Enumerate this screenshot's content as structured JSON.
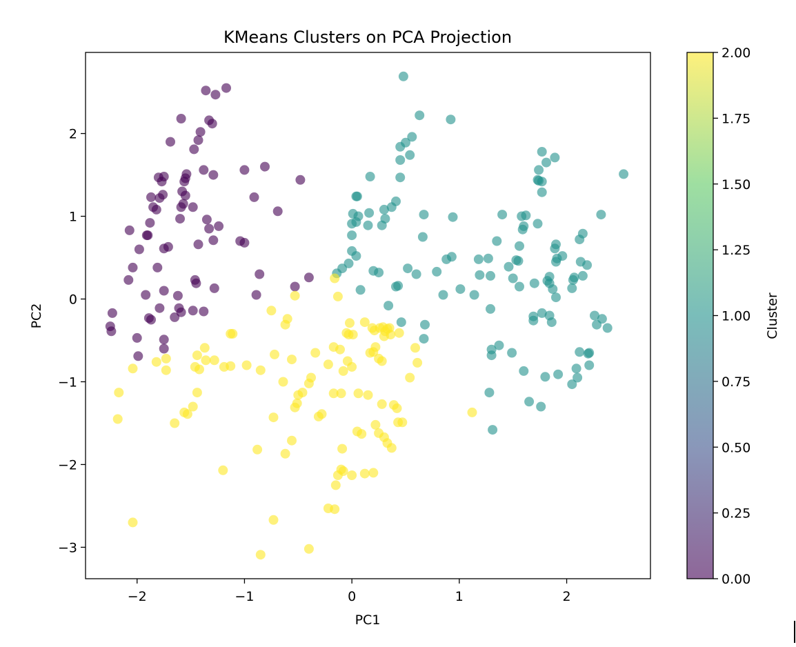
{
  "chart_data": {
    "type": "scatter",
    "title": "KMeans Clusters on PCA Projection",
    "xlabel": "PC1",
    "ylabel": "PC2",
    "xlim": [
      -2.48,
      2.78
    ],
    "ylim": [
      -3.38,
      2.98
    ],
    "xticks": [
      -2,
      -1,
      0,
      1,
      2
    ],
    "xtick_labels": [
      "−2",
      "−1",
      "0",
      "1",
      "2"
    ],
    "yticks": [
      -3,
      -2,
      -1,
      0,
      1,
      2
    ],
    "ytick_labels": [
      "−3",
      "−2",
      "−1",
      "0",
      "1",
      "2"
    ],
    "grid": false,
    "point_alpha": 0.6,
    "colorbar": {
      "label": "Cluster",
      "min": 0,
      "max": 2,
      "ticks": [
        0,
        0.25,
        0.5,
        0.75,
        1.0,
        1.25,
        1.5,
        1.75,
        2.0
      ],
      "tick_labels": [
        "0.00",
        "0.25",
        "0.50",
        "0.75",
        "1.00",
        "1.25",
        "1.50",
        "1.75",
        "2.00"
      ],
      "colormap": "viridis",
      "stops": [
        "#440154",
        "#3b528b",
        "#21918c",
        "#5ec962",
        "#fde725"
      ]
    },
    "series": [
      {
        "cluster": 0,
        "color": "#440154",
        "points": [
          [
            -1.36,
            2.52
          ],
          [
            -1.17,
            2.55
          ],
          [
            -1.27,
            2.47
          ],
          [
            -1.59,
            2.18
          ],
          [
            -1.33,
            2.16
          ],
          [
            -1.3,
            2.12
          ],
          [
            -1.41,
            2.02
          ],
          [
            -1.43,
            1.92
          ],
          [
            -1.69,
            1.9
          ],
          [
            -1.47,
            1.81
          ],
          [
            -1.0,
            1.56
          ],
          [
            -0.81,
            1.6
          ],
          [
            -1.38,
            1.56
          ],
          [
            -1.29,
            1.5
          ],
          [
            -1.54,
            1.51
          ],
          [
            -1.55,
            1.46
          ],
          [
            -1.56,
            1.42
          ],
          [
            -1.8,
            1.47
          ],
          [
            -1.75,
            1.48
          ],
          [
            -1.77,
            1.42
          ],
          [
            -0.48,
            1.44
          ],
          [
            -1.58,
            1.3
          ],
          [
            -1.55,
            1.25
          ],
          [
            -1.76,
            1.26
          ],
          [
            -0.91,
            1.23
          ],
          [
            -1.87,
            1.23
          ],
          [
            -1.79,
            1.22
          ],
          [
            -1.57,
            1.15
          ],
          [
            -1.59,
            1.11
          ],
          [
            -1.85,
            1.11
          ],
          [
            -1.82,
            1.08
          ],
          [
            -1.48,
            1.11
          ],
          [
            -0.69,
            1.06
          ],
          [
            -1.6,
            0.97
          ],
          [
            -1.35,
            0.96
          ],
          [
            -1.24,
            0.88
          ],
          [
            -1.88,
            0.92
          ],
          [
            -1.33,
            0.85
          ],
          [
            -2.07,
            0.83
          ],
          [
            -1.9,
            0.77
          ],
          [
            -1.91,
            0.77
          ],
          [
            -1.29,
            0.71
          ],
          [
            -1.04,
            0.7
          ],
          [
            -1.0,
            0.68
          ],
          [
            -1.43,
            0.66
          ],
          [
            -1.71,
            0.63
          ],
          [
            -1.75,
            0.61
          ],
          [
            -1.98,
            0.6
          ],
          [
            -2.04,
            0.38
          ],
          [
            -1.81,
            0.38
          ],
          [
            -0.86,
            0.3
          ],
          [
            -0.4,
            0.26
          ],
          [
            -2.08,
            0.23
          ],
          [
            -1.46,
            0.23
          ],
          [
            -1.45,
            0.19
          ],
          [
            -0.53,
            0.15
          ],
          [
            -1.28,
            0.13
          ],
          [
            -1.75,
            0.1
          ],
          [
            -1.92,
            0.05
          ],
          [
            -1.62,
            0.04
          ],
          [
            -0.89,
            0.05
          ],
          [
            -1.61,
            -0.11
          ],
          [
            -1.59,
            -0.16
          ],
          [
            -1.79,
            -0.11
          ],
          [
            -1.48,
            -0.14
          ],
          [
            -1.38,
            -0.15
          ],
          [
            -2.23,
            -0.17
          ],
          [
            -1.65,
            -0.22
          ],
          [
            -1.89,
            -0.23
          ],
          [
            -1.87,
            -0.25
          ],
          [
            -2.25,
            -0.33
          ],
          [
            -2.24,
            -0.39
          ],
          [
            -2.0,
            -0.47
          ],
          [
            -1.75,
            -0.49
          ],
          [
            -1.75,
            -0.6
          ],
          [
            -1.99,
            -0.69
          ]
        ]
      },
      {
        "cluster": 1,
        "color": "#21918c",
        "points": [
          [
            0.48,
            2.69
          ],
          [
            0.63,
            2.22
          ],
          [
            0.92,
            2.17
          ],
          [
            0.56,
            1.96
          ],
          [
            0.5,
            1.89
          ],
          [
            0.45,
            1.84
          ],
          [
            0.54,
            1.74
          ],
          [
            0.45,
            1.68
          ],
          [
            1.77,
            1.78
          ],
          [
            1.89,
            1.71
          ],
          [
            1.81,
            1.65
          ],
          [
            1.74,
            1.56
          ],
          [
            2.53,
            1.51
          ],
          [
            0.17,
            1.48
          ],
          [
            0.45,
            1.47
          ],
          [
            1.73,
            1.44
          ],
          [
            1.74,
            1.43
          ],
          [
            1.77,
            1.42
          ],
          [
            1.77,
            1.29
          ],
          [
            0.04,
            1.24
          ],
          [
            0.05,
            1.24
          ],
          [
            0.41,
            1.18
          ],
          [
            0.37,
            1.11
          ],
          [
            0.3,
            1.08
          ],
          [
            0.16,
            1.04
          ],
          [
            0.01,
            1.03
          ],
          [
            0.06,
            1.0
          ],
          [
            0.67,
            1.02
          ],
          [
            1.4,
            1.02
          ],
          [
            1.58,
            1.0
          ],
          [
            1.62,
            1.01
          ],
          [
            2.32,
            1.02
          ],
          [
            0.94,
            0.99
          ],
          [
            0.31,
            0.97
          ],
          [
            0.04,
            0.93
          ],
          [
            0.0,
            0.91
          ],
          [
            1.73,
            0.91
          ],
          [
            0.15,
            0.89
          ],
          [
            0.28,
            0.89
          ],
          [
            1.6,
            0.88
          ],
          [
            1.59,
            0.84
          ],
          [
            2.15,
            0.79
          ],
          [
            0.0,
            0.77
          ],
          [
            0.66,
            0.75
          ],
          [
            2.12,
            0.72
          ],
          [
            1.35,
            0.7
          ],
          [
            1.9,
            0.66
          ],
          [
            1.89,
            0.61
          ],
          [
            1.56,
            0.64
          ],
          [
            0.0,
            0.58
          ],
          [
            0.04,
            0.52
          ],
          [
            1.96,
            0.52
          ],
          [
            0.93,
            0.51
          ],
          [
            0.88,
            0.48
          ],
          [
            1.91,
            0.49
          ],
          [
            1.27,
            0.49
          ],
          [
            1.18,
            0.48
          ],
          [
            1.53,
            0.47
          ],
          [
            1.55,
            0.46
          ],
          [
            1.9,
            0.45
          ],
          [
            2.13,
            0.45
          ],
          [
            2.19,
            0.41
          ],
          [
            1.46,
            0.39
          ],
          [
            -0.03,
            0.43
          ],
          [
            -0.09,
            0.37
          ],
          [
            0.52,
            0.37
          ],
          [
            -0.14,
            0.31
          ],
          [
            0.2,
            0.34
          ],
          [
            0.25,
            0.32
          ],
          [
            0.79,
            0.33
          ],
          [
            0.6,
            0.3
          ],
          [
            1.19,
            0.29
          ],
          [
            1.29,
            0.28
          ],
          [
            1.84,
            0.27
          ],
          [
            2.15,
            0.28
          ],
          [
            1.5,
            0.25
          ],
          [
            1.82,
            0.22
          ],
          [
            1.84,
            0.19
          ],
          [
            1.7,
            0.19
          ],
          [
            2.06,
            0.23
          ],
          [
            2.07,
            0.26
          ],
          [
            0.41,
            0.15
          ],
          [
            0.43,
            0.16
          ],
          [
            1.01,
            0.12
          ],
          [
            0.08,
            0.11
          ],
          [
            1.56,
            0.15
          ],
          [
            2.05,
            0.13
          ],
          [
            1.87,
            0.12
          ],
          [
            0.85,
            0.05
          ],
          [
            1.14,
            0.05
          ],
          [
            1.9,
            0.02
          ],
          [
            0.34,
            -0.08
          ],
          [
            1.29,
            -0.12
          ],
          [
            1.84,
            -0.2
          ],
          [
            1.69,
            -0.21
          ],
          [
            1.77,
            -0.17
          ],
          [
            1.69,
            -0.26
          ],
          [
            1.86,
            -0.28
          ],
          [
            2.26,
            -0.2
          ],
          [
            2.33,
            -0.24
          ],
          [
            2.28,
            -0.31
          ],
          [
            2.38,
            -0.35
          ],
          [
            0.68,
            -0.31
          ],
          [
            0.46,
            -0.28
          ],
          [
            0.67,
            -0.48
          ],
          [
            1.37,
            -0.56
          ],
          [
            1.3,
            -0.61
          ],
          [
            1.3,
            -0.68
          ],
          [
            1.49,
            -0.65
          ],
          [
            2.12,
            -0.64
          ],
          [
            2.2,
            -0.66
          ],
          [
            2.21,
            -0.65
          ],
          [
            2.21,
            -0.8
          ],
          [
            2.09,
            -0.84
          ],
          [
            1.6,
            -0.87
          ],
          [
            1.8,
            -0.94
          ],
          [
            1.92,
            -0.91
          ],
          [
            2.1,
            -0.95
          ],
          [
            2.05,
            -1.03
          ],
          [
            1.28,
            -1.13
          ],
          [
            1.65,
            -1.24
          ],
          [
            1.76,
            -1.3
          ],
          [
            1.31,
            -1.58
          ]
        ]
      },
      {
        "cluster": 2,
        "color": "#fde725",
        "points": [
          [
            -0.16,
            0.25
          ],
          [
            -0.13,
            0.03
          ],
          [
            -0.53,
            0.04
          ],
          [
            -0.75,
            -0.14
          ],
          [
            -0.6,
            -0.24
          ],
          [
            -0.62,
            -0.31
          ],
          [
            -1.13,
            -0.42
          ],
          [
            -1.11,
            -0.42
          ],
          [
            -0.02,
            -0.29
          ],
          [
            0.12,
            -0.28
          ],
          [
            0.29,
            -0.34
          ],
          [
            0.26,
            -0.35
          ],
          [
            0.33,
            -0.36
          ],
          [
            0.35,
            -0.35
          ],
          [
            0.31,
            -0.39
          ],
          [
            0.19,
            -0.35
          ],
          [
            0.21,
            -0.38
          ],
          [
            0.44,
            -0.41
          ],
          [
            0.36,
            -0.43
          ],
          [
            0.3,
            -0.45
          ],
          [
            -0.05,
            -0.41
          ],
          [
            -0.03,
            -0.43
          ],
          [
            0.01,
            -0.43
          ],
          [
            -0.11,
            -0.61
          ],
          [
            -0.17,
            -0.58
          ],
          [
            0.22,
            -0.58
          ],
          [
            0.2,
            -0.64
          ],
          [
            -0.34,
            -0.65
          ],
          [
            -0.56,
            -0.73
          ],
          [
            -1.37,
            -0.59
          ],
          [
            -1.44,
            -0.68
          ],
          [
            -1.36,
            -0.74
          ],
          [
            -1.28,
            -0.74
          ],
          [
            -1.82,
            -0.76
          ],
          [
            -1.73,
            -0.72
          ],
          [
            -2.04,
            -0.84
          ],
          [
            -1.73,
            -0.86
          ],
          [
            -1.19,
            -0.82
          ],
          [
            -1.13,
            -0.81
          ],
          [
            -0.98,
            -0.8
          ],
          [
            -0.85,
            -0.86
          ],
          [
            -0.72,
            -0.67
          ],
          [
            -1.46,
            -0.82
          ],
          [
            -1.42,
            -0.85
          ],
          [
            -0.22,
            -0.79
          ],
          [
            -0.04,
            -0.75
          ],
          [
            0.0,
            -0.82
          ],
          [
            0.59,
            -0.59
          ],
          [
            0.54,
            -0.95
          ],
          [
            0.61,
            -0.77
          ],
          [
            0.17,
            -0.65
          ],
          [
            0.25,
            -0.72
          ],
          [
            0.28,
            -0.75
          ],
          [
            -0.08,
            -0.87
          ],
          [
            -0.38,
            -0.95
          ],
          [
            -0.4,
            -1.02
          ],
          [
            -0.64,
            -1.0
          ],
          [
            -0.46,
            -1.13
          ],
          [
            -0.5,
            -1.16
          ],
          [
            -0.1,
            -1.14
          ],
          [
            -0.17,
            -1.14
          ],
          [
            0.06,
            -1.14
          ],
          [
            0.15,
            -1.16
          ],
          [
            -1.44,
            -1.13
          ],
          [
            -1.48,
            -1.3
          ],
          [
            -1.56,
            -1.37
          ],
          [
            -1.53,
            -1.39
          ],
          [
            -0.51,
            -1.26
          ],
          [
            -0.53,
            -1.31
          ],
          [
            -0.73,
            -1.43
          ],
          [
            -0.28,
            -1.39
          ],
          [
            -0.31,
            -1.42
          ],
          [
            0.39,
            -1.28
          ],
          [
            0.42,
            -1.32
          ],
          [
            0.28,
            -1.27
          ],
          [
            0.43,
            -1.49
          ],
          [
            0.47,
            -1.49
          ],
          [
            0.22,
            -1.52
          ],
          [
            0.25,
            -1.62
          ],
          [
            0.3,
            -1.67
          ],
          [
            0.33,
            -1.74
          ],
          [
            0.37,
            -1.8
          ],
          [
            0.05,
            -1.6
          ],
          [
            0.09,
            -1.63
          ],
          [
            1.12,
            -1.37
          ],
          [
            -2.17,
            -1.13
          ],
          [
            -2.18,
            -1.45
          ],
          [
            -1.65,
            -1.5
          ],
          [
            -0.88,
            -1.82
          ],
          [
            -0.62,
            -1.87
          ],
          [
            -0.56,
            -1.71
          ],
          [
            -0.09,
            -1.81
          ],
          [
            -0.1,
            -2.06
          ],
          [
            -0.08,
            -2.08
          ],
          [
            -0.13,
            -2.13
          ],
          [
            -0.15,
            -2.25
          ],
          [
            0.0,
            -2.13
          ],
          [
            0.12,
            -2.11
          ],
          [
            0.2,
            -2.1
          ],
          [
            -1.2,
            -2.07
          ],
          [
            -0.22,
            -2.53
          ],
          [
            -0.16,
            -2.54
          ],
          [
            -0.73,
            -2.67
          ],
          [
            -2.04,
            -2.7
          ],
          [
            -0.4,
            -3.02
          ],
          [
            -0.85,
            -3.09
          ]
        ]
      }
    ]
  }
}
